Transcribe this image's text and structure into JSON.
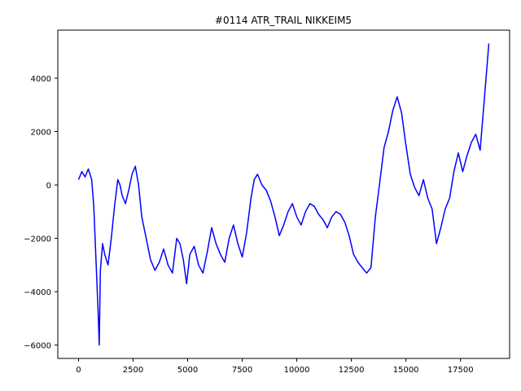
{
  "chart_data": {
    "type": "line",
    "title": "#0114 ATR_TRAIL NIKKEIM5",
    "xlabel": "",
    "ylabel": "",
    "xlim": [
      -950,
      19750
    ],
    "ylim": [
      -6500,
      5800
    ],
    "xticks": [
      0,
      2500,
      5000,
      7500,
      10000,
      12500,
      15000,
      17500
    ],
    "yticks": [
      -6000,
      -4000,
      -2000,
      0,
      2000,
      4000
    ],
    "xtick_labels": [
      "0",
      "2500",
      "5000",
      "7500",
      "10000",
      "12500",
      "15000",
      "17500"
    ],
    "ytick_labels": [
      "−6000",
      "−4000",
      "−2000",
      "0",
      "2000",
      "4000"
    ],
    "grid": false,
    "series": [
      {
        "color": "#0000ff",
        "x": [
          0,
          150,
          300,
          450,
          600,
          700,
          800,
          900,
          950,
          1000,
          1100,
          1200,
          1350,
          1500,
          1650,
          1800,
          1900,
          2000,
          2150,
          2300,
          2450,
          2600,
          2750,
          2900,
          3100,
          3300,
          3500,
          3700,
          3900,
          4100,
          4300,
          4500,
          4650,
          4800,
          4950,
          5100,
          5300,
          5500,
          5700,
          5900,
          6100,
          6300,
          6500,
          6700,
          6900,
          7100,
          7300,
          7500,
          7700,
          7900,
          8050,
          8200,
          8400,
          8600,
          8800,
          9000,
          9200,
          9400,
          9600,
          9800,
          10000,
          10200,
          10400,
          10600,
          10800,
          11000,
          11200,
          11400,
          11600,
          11800,
          12000,
          12200,
          12400,
          12600,
          12800,
          13000,
          13200,
          13400,
          13600,
          13800,
          14000,
          14200,
          14400,
          14600,
          14800,
          15000,
          15200,
          15400,
          15600,
          15800,
          16000,
          16200,
          16400,
          16600,
          16800,
          17000,
          17200,
          17400,
          17600,
          17800,
          18000,
          18200,
          18400,
          18600,
          18800
        ],
        "y": [
          200,
          500,
          300,
          600,
          200,
          -800,
          -2800,
          -4800,
          -6000,
          -3200,
          -2200,
          -2600,
          -3000,
          -2000,
          -800,
          200,
          0,
          -400,
          -700,
          -200,
          400,
          700,
          0,
          -1200,
          -2000,
          -2800,
          -3200,
          -2900,
          -2400,
          -3000,
          -3300,
          -2000,
          -2200,
          -2800,
          -3700,
          -2600,
          -2300,
          -3000,
          -3300,
          -2500,
          -1600,
          -2200,
          -2600,
          -2900,
          -2000,
          -1500,
          -2200,
          -2700,
          -1800,
          -500,
          200,
          400,
          0,
          -200,
          -600,
          -1200,
          -1900,
          -1500,
          -1000,
          -700,
          -1200,
          -1500,
          -1000,
          -700,
          -800,
          -1100,
          -1300,
          -1600,
          -1200,
          -1000,
          -1100,
          -1400,
          -1900,
          -2600,
          -2900,
          -3100,
          -3300,
          -3100,
          -1200,
          100,
          1400,
          2000,
          2800,
          3300,
          2700,
          1500,
          400,
          -100,
          -400,
          200,
          -500,
          -900,
          -2200,
          -1600,
          -900,
          -500,
          500,
          1200,
          500,
          1100,
          1600,
          1900,
          1300,
          3300,
          5300
        ]
      }
    ]
  }
}
